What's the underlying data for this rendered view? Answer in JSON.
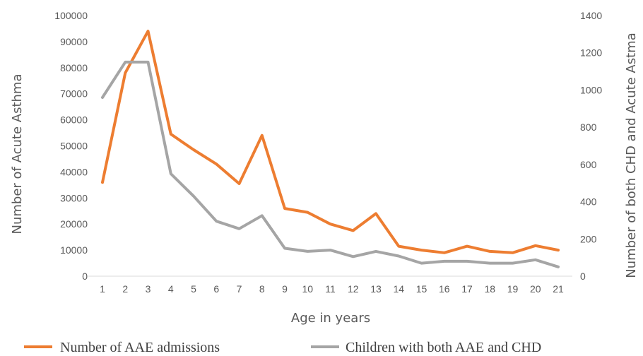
{
  "chart_data": {
    "type": "line",
    "x": [
      1,
      2,
      3,
      4,
      5,
      6,
      7,
      8,
      9,
      10,
      11,
      12,
      13,
      14,
      15,
      16,
      17,
      18,
      19,
      20,
      21
    ],
    "xlabel": "Age in years",
    "ylabel": "Number of Acute Asthma",
    "y2label": "Number of  both CHD and Acute Astma",
    "ylim": [
      0,
      100000
    ],
    "y2lim": [
      0,
      1400
    ],
    "yticks": [
      "0",
      "10000",
      "20000",
      "30000",
      "40000",
      "50000",
      "60000",
      "70000",
      "80000",
      "90000",
      "100000"
    ],
    "y2ticks": [
      "0",
      "200",
      "400",
      "600",
      "800",
      "1000",
      "1200",
      "1400"
    ],
    "grid": false,
    "legend_position": "bottom",
    "series": [
      {
        "name": "Number of AAE admissions",
        "axis": "left",
        "color": "#ED7D31",
        "values": [
          36000,
          78000,
          94000,
          54500,
          48500,
          43000,
          35500,
          54000,
          26000,
          24500,
          20000,
          17500,
          24000,
          11500,
          10000,
          9000,
          11500,
          9500,
          9000,
          11700,
          10000
        ]
      },
      {
        "name": "Children with both AAE and CHD",
        "axis": "right",
        "color": "#A5A5A5",
        "values": [
          960,
          1150,
          1150,
          550,
          430,
          295,
          255,
          325,
          150,
          133,
          140,
          105,
          133,
          108,
          70,
          80,
          80,
          70,
          70,
          88,
          50
        ]
      }
    ]
  }
}
